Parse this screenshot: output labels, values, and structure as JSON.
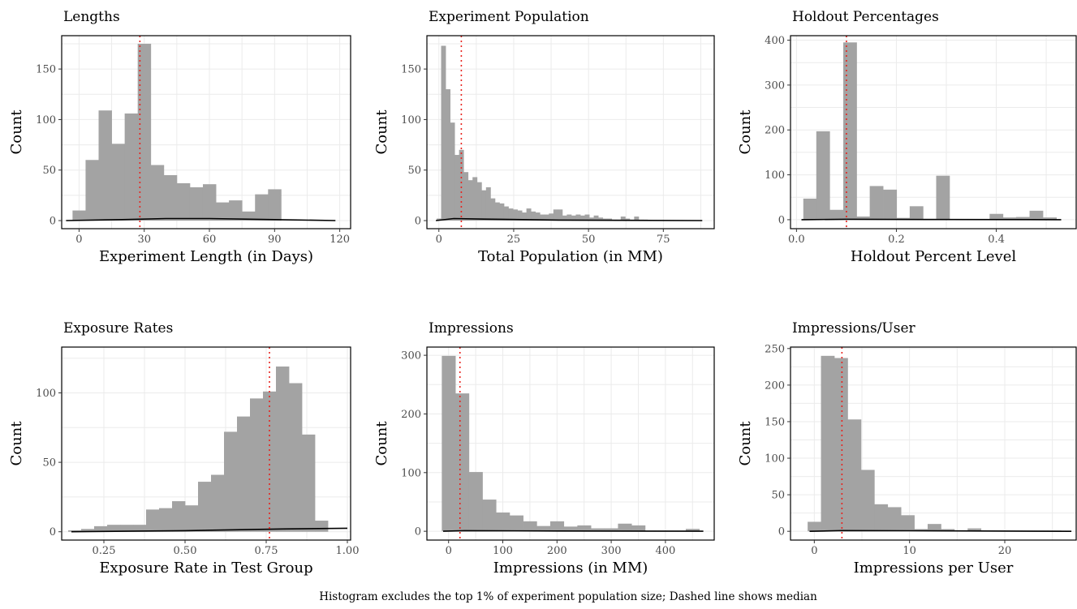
{
  "caption": "Histogram excludes the top 1% of experiment population size; Dashed line shows median",
  "chart_data": [
    {
      "type": "bar",
      "title": "Lengths",
      "xlabel": "Experiment Length (in Days)",
      "ylabel": "Count",
      "xlim": [
        -8,
        125
      ],
      "ylim": [
        -8,
        183
      ],
      "xticks": [
        0,
        30,
        60,
        90,
        120
      ],
      "yticks": [
        0,
        50,
        100,
        150
      ],
      "binwidth": 6,
      "bins": [
        {
          "x": 0,
          "count": 10
        },
        {
          "x": 6,
          "count": 60
        },
        {
          "x": 12,
          "count": 109
        },
        {
          "x": 18,
          "count": 76
        },
        {
          "x": 24,
          "count": 106
        },
        {
          "x": 30,
          "count": 175
        },
        {
          "x": 36,
          "count": 55
        },
        {
          "x": 42,
          "count": 45
        },
        {
          "x": 48,
          "count": 37
        },
        {
          "x": 54,
          "count": 33
        },
        {
          "x": 60,
          "count": 36
        },
        {
          "x": 66,
          "count": 18
        },
        {
          "x": 72,
          "count": 20
        },
        {
          "x": 78,
          "count": 9
        },
        {
          "x": 84,
          "count": 26
        },
        {
          "x": 90,
          "count": 31
        }
      ],
      "median": 28,
      "density_line": [
        [
          -6,
          0
        ],
        [
          20,
          1
        ],
        [
          40,
          2
        ],
        [
          60,
          2
        ],
        [
          90,
          1
        ],
        [
          118,
          0
        ]
      ]
    },
    {
      "type": "bar",
      "title": "Experiment Population",
      "xlabel": "Total Population (in MM)",
      "ylabel": "Count",
      "xlim": [
        -4,
        92
      ],
      "ylim": [
        -8,
        183
      ],
      "xticks": [
        0,
        25,
        50,
        75
      ],
      "yticks": [
        0,
        50,
        100,
        150
      ],
      "binwidth": 1.5,
      "bins": [
        {
          "x": 0,
          "count": 2
        },
        {
          "x": 1.5,
          "count": 173
        },
        {
          "x": 3,
          "count": 130
        },
        {
          "x": 4.5,
          "count": 97
        },
        {
          "x": 6,
          "count": 65
        },
        {
          "x": 7.5,
          "count": 70
        },
        {
          "x": 9,
          "count": 48
        },
        {
          "x": 10.5,
          "count": 40
        },
        {
          "x": 12,
          "count": 43
        },
        {
          "x": 13.5,
          "count": 38
        },
        {
          "x": 15,
          "count": 30
        },
        {
          "x": 16.5,
          "count": 33
        },
        {
          "x": 18,
          "count": 22
        },
        {
          "x": 19.5,
          "count": 18
        },
        {
          "x": 21,
          "count": 17
        },
        {
          "x": 22.5,
          "count": 14
        },
        {
          "x": 24,
          "count": 12
        },
        {
          "x": 25.5,
          "count": 11
        },
        {
          "x": 27,
          "count": 10
        },
        {
          "x": 28.5,
          "count": 8
        },
        {
          "x": 30,
          "count": 12
        },
        {
          "x": 31.5,
          "count": 9
        },
        {
          "x": 33,
          "count": 8
        },
        {
          "x": 34.5,
          "count": 6
        },
        {
          "x": 36,
          "count": 6
        },
        {
          "x": 37.5,
          "count": 7
        },
        {
          "x": 39,
          "count": 11
        },
        {
          "x": 40.5,
          "count": 11
        },
        {
          "x": 42,
          "count": 5
        },
        {
          "x": 43.5,
          "count": 6
        },
        {
          "x": 45,
          "count": 5
        },
        {
          "x": 46.5,
          "count": 6
        },
        {
          "x": 48,
          "count": 5
        },
        {
          "x": 49.5,
          "count": 6
        },
        {
          "x": 51,
          "count": 3
        },
        {
          "x": 52.5,
          "count": 5
        },
        {
          "x": 54,
          "count": 3
        },
        {
          "x": 55.5,
          "count": 2
        },
        {
          "x": 57,
          "count": 2
        },
        {
          "x": 58.5,
          "count": 1
        },
        {
          "x": 60,
          "count": 1
        },
        {
          "x": 61.5,
          "count": 4
        },
        {
          "x": 63,
          "count": 2
        },
        {
          "x": 64.5,
          "count": 1
        },
        {
          "x": 66,
          "count": 4
        },
        {
          "x": 67.5,
          "count": 1
        },
        {
          "x": 69,
          "count": 1
        }
      ],
      "median": 7.5,
      "density_line": [
        [
          -1,
          0
        ],
        [
          5,
          2
        ],
        [
          15,
          1.5
        ],
        [
          40,
          0.5
        ],
        [
          88,
          0
        ]
      ]
    },
    {
      "type": "bar",
      "title": "Holdout Percentages",
      "xlabel": "Holdout Percent Level",
      "ylabel": "Count",
      "xlim": [
        -0.012,
        0.56
      ],
      "ylim": [
        -20,
        410
      ],
      "xticks": [
        0.0,
        0.2,
        0.4
      ],
      "xticklabels": [
        "0.0",
        "0.2",
        "0.4"
      ],
      "yticks": [
        0,
        100,
        200,
        300,
        400
      ],
      "binwidth": 0.0267,
      "bins": [
        {
          "x": 0.027,
          "count": 47
        },
        {
          "x": 0.053,
          "count": 197
        },
        {
          "x": 0.08,
          "count": 22
        },
        {
          "x": 0.107,
          "count": 395
        },
        {
          "x": 0.133,
          "count": 7
        },
        {
          "x": 0.16,
          "count": 75
        },
        {
          "x": 0.187,
          "count": 67
        },
        {
          "x": 0.213,
          "count": 4
        },
        {
          "x": 0.24,
          "count": 30
        },
        {
          "x": 0.267,
          "count": 2
        },
        {
          "x": 0.293,
          "count": 98
        },
        {
          "x": 0.32,
          "count": 1
        },
        {
          "x": 0.347,
          "count": 1
        },
        {
          "x": 0.373,
          "count": 1
        },
        {
          "x": 0.4,
          "count": 13
        },
        {
          "x": 0.427,
          "count": 5
        },
        {
          "x": 0.453,
          "count": 6
        },
        {
          "x": 0.48,
          "count": 20
        },
        {
          "x": 0.507,
          "count": 5
        }
      ],
      "median": 0.1,
      "density_line": [
        [
          0.01,
          0
        ],
        [
          0.1,
          1
        ],
        [
          0.3,
          0.5
        ],
        [
          0.53,
          0
        ]
      ]
    },
    {
      "type": "bar",
      "title": "Exposure Rates",
      "xlabel": "Exposure Rate in Test Group",
      "ylabel": "Count",
      "xlim": [
        0.12,
        1.01
      ],
      "ylim": [
        -6,
        133
      ],
      "xticks": [
        0.25,
        0.5,
        0.75,
        1.0
      ],
      "xticklabels": [
        "0.25",
        "0.50",
        "0.75",
        "1.00"
      ],
      "yticks": [
        0,
        50,
        100
      ],
      "binwidth": 0.04,
      "bins": [
        {
          "x": 0.16,
          "count": 1
        },
        {
          "x": 0.2,
          "count": 2
        },
        {
          "x": 0.24,
          "count": 4
        },
        {
          "x": 0.28,
          "count": 5
        },
        {
          "x": 0.32,
          "count": 5
        },
        {
          "x": 0.36,
          "count": 5
        },
        {
          "x": 0.4,
          "count": 16
        },
        {
          "x": 0.44,
          "count": 17
        },
        {
          "x": 0.48,
          "count": 22
        },
        {
          "x": 0.52,
          "count": 19
        },
        {
          "x": 0.56,
          "count": 36
        },
        {
          "x": 0.6,
          "count": 41
        },
        {
          "x": 0.64,
          "count": 72
        },
        {
          "x": 0.68,
          "count": 83
        },
        {
          "x": 0.72,
          "count": 96
        },
        {
          "x": 0.76,
          "count": 101
        },
        {
          "x": 0.8,
          "count": 119
        },
        {
          "x": 0.84,
          "count": 107
        },
        {
          "x": 0.88,
          "count": 70
        },
        {
          "x": 0.92,
          "count": 8
        }
      ],
      "median": 0.76,
      "density_line": [
        [
          0.15,
          0
        ],
        [
          0.5,
          0.8
        ],
        [
          0.8,
          2
        ],
        [
          1.0,
          2.5
        ]
      ]
    },
    {
      "type": "bar",
      "title": "Impressions",
      "xlabel": "Impressions (in MM)",
      "ylabel": "Count",
      "xlim": [
        -40,
        490
      ],
      "ylim": [
        -15,
        314
      ],
      "xticks": [
        0,
        100,
        200,
        300,
        400
      ],
      "yticks": [
        0,
        100,
        200,
        300
      ],
      "binwidth": 25,
      "bins": [
        {
          "x": 0,
          "count": 299
        },
        {
          "x": 25,
          "count": 235
        },
        {
          "x": 50,
          "count": 101
        },
        {
          "x": 75,
          "count": 54
        },
        {
          "x": 100,
          "count": 32
        },
        {
          "x": 125,
          "count": 27
        },
        {
          "x": 150,
          "count": 17
        },
        {
          "x": 175,
          "count": 9
        },
        {
          "x": 200,
          "count": 17
        },
        {
          "x": 225,
          "count": 8
        },
        {
          "x": 250,
          "count": 10
        },
        {
          "x": 275,
          "count": 5
        },
        {
          "x": 300,
          "count": 5
        },
        {
          "x": 325,
          "count": 13
        },
        {
          "x": 350,
          "count": 10
        },
        {
          "x": 375,
          "count": 1
        },
        {
          "x": 400,
          "count": 1
        },
        {
          "x": 425,
          "count": 1
        },
        {
          "x": 450,
          "count": 4
        }
      ],
      "median": 21,
      "density_line": [
        [
          -10,
          0
        ],
        [
          30,
          1
        ],
        [
          200,
          0.5
        ],
        [
          470,
          0
        ]
      ]
    },
    {
      "type": "bar",
      "title": "Impressions/User",
      "xlabel": "Impressions per User",
      "ylabel": "Count",
      "xlim": [
        -2.5,
        27.5
      ],
      "ylim": [
        -12,
        252
      ],
      "xticks": [
        0,
        10,
        20
      ],
      "yticks": [
        0,
        50,
        100,
        150,
        200,
        250
      ],
      "binwidth": 1.4,
      "bins": [
        {
          "x": 0,
          "count": 13
        },
        {
          "x": 1.4,
          "count": 240
        },
        {
          "x": 2.8,
          "count": 237
        },
        {
          "x": 4.2,
          "count": 153
        },
        {
          "x": 5.6,
          "count": 84
        },
        {
          "x": 7,
          "count": 37
        },
        {
          "x": 8.4,
          "count": 33
        },
        {
          "x": 9.8,
          "count": 22
        },
        {
          "x": 11.2,
          "count": 3
        },
        {
          "x": 12.6,
          "count": 10
        },
        {
          "x": 14,
          "count": 3
        },
        {
          "x": 15.4,
          "count": 1
        },
        {
          "x": 16.8,
          "count": 4
        },
        {
          "x": 18.2,
          "count": 1
        },
        {
          "x": 19.6,
          "count": 1
        },
        {
          "x": 21,
          "count": 1
        },
        {
          "x": 22.4,
          "count": 1
        },
        {
          "x": 23.8,
          "count": 1
        },
        {
          "x": 25.2,
          "count": 1
        }
      ],
      "median": 2.9,
      "density_line": [
        [
          -0.5,
          0
        ],
        [
          3,
          1
        ],
        [
          10,
          0.8
        ],
        [
          27,
          0
        ]
      ]
    }
  ]
}
